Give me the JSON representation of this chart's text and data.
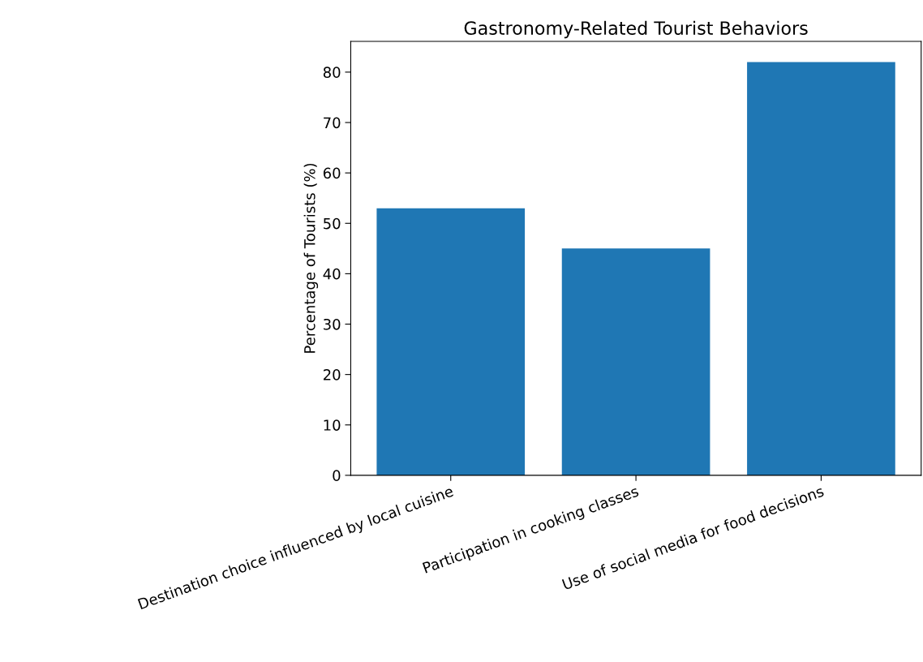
{
  "chart_data": {
    "type": "bar",
    "title": "Gastronomy-Related Tourist Behaviors",
    "ylabel": "Percentage of Tourists (%)",
    "categories": [
      "Destination choice influenced by local cuisine",
      "Participation in cooking classes",
      "Use of social media for food decisions"
    ],
    "values": [
      53,
      45,
      82
    ],
    "color": "#1f77b4",
    "ylim": [
      0,
      86.1
    ],
    "yticks": [
      0,
      10,
      20,
      30,
      40,
      50,
      60,
      70,
      80
    ],
    "grid": false
  }
}
